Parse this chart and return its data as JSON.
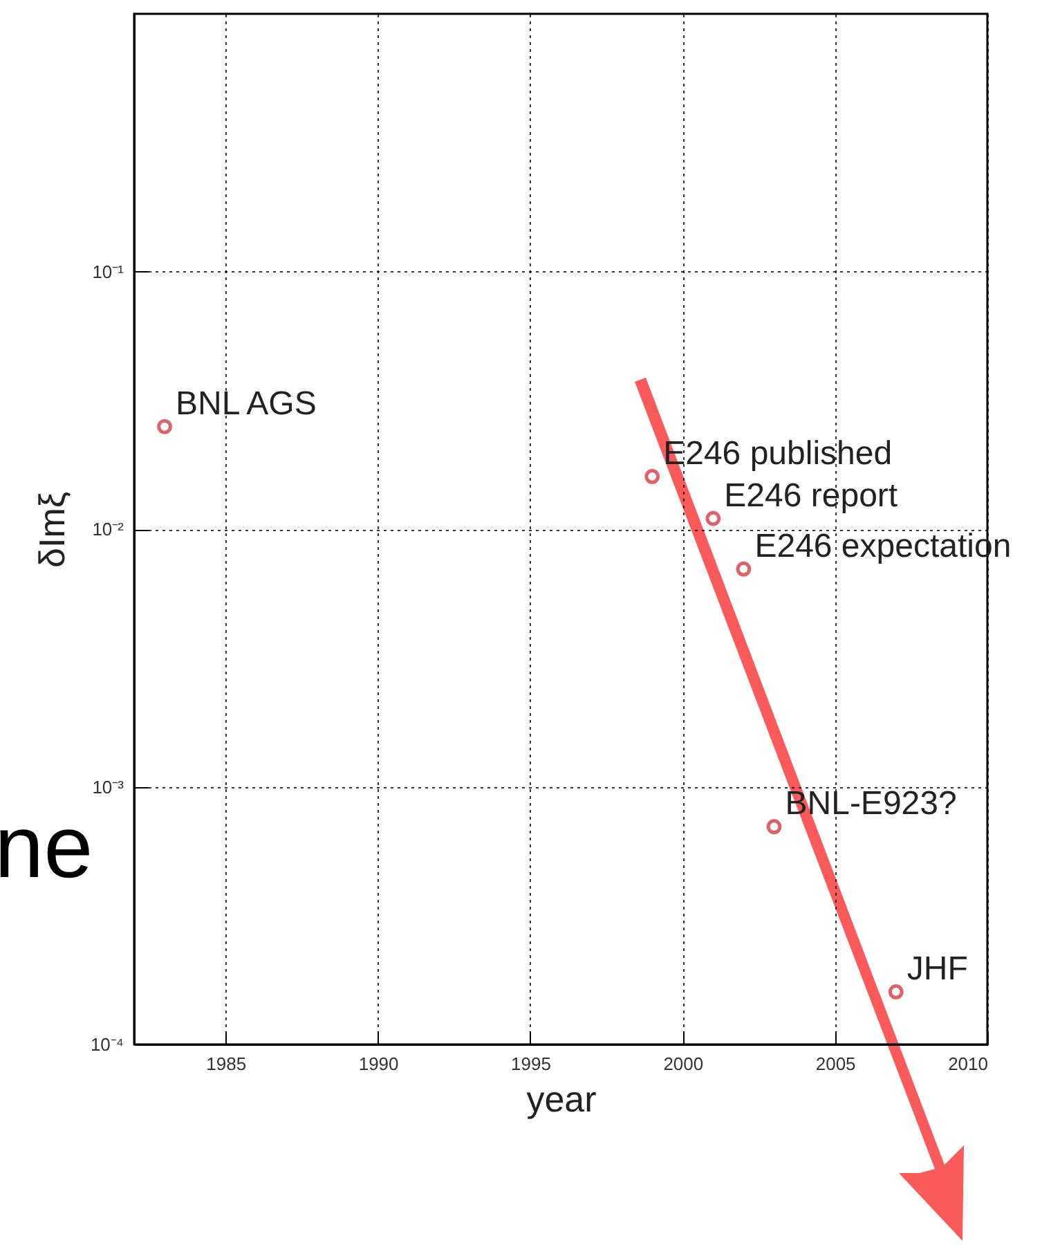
{
  "chart_data": {
    "type": "scatter",
    "xlabel": "year",
    "ylabel": "δImξ",
    "x": [
      1983,
      1999,
      2001,
      2002,
      2003,
      2007
    ],
    "series": [
      {
        "color": "#d0202e",
        "values": [
          0.025,
          0.016,
          0.011,
          0.007,
          0.0007,
          0.00016
        ]
      }
    ],
    "marker": "circle",
    "log": true,
    "grid": true,
    "xlim": [
      1982,
      2010
    ],
    "xticks": [
      1985,
      1990,
      1995,
      2000,
      2005,
      2010
    ],
    "ylim": [
      0.0001,
      1
    ],
    "yticks": [
      {
        "value": 0.0001,
        "label": "10⁻⁴"
      },
      {
        "value": 0.001,
        "label": "10⁻³"
      },
      {
        "value": 0.01,
        "label": "10⁻²"
      },
      {
        "value": 0.1,
        "label": "10⁻¹"
      }
    ],
    "annotations": [
      {
        "text": "BNL AGS",
        "x": 1983,
        "y": 0.025
      },
      {
        "text": "E246 published",
        "x": 1999,
        "y": 0.016
      },
      {
        "text": "E246 report",
        "x": 2001,
        "y": 0.011
      },
      {
        "text": "E246 expectation",
        "x": 2002,
        "y": 0.007
      },
      {
        "text": "BNL-E923?",
        "x": 2003,
        "y": 0.0007
      },
      {
        "text": "JHF",
        "x": 2007,
        "y": 0.00016
      },
      "ne"
    ]
  }
}
